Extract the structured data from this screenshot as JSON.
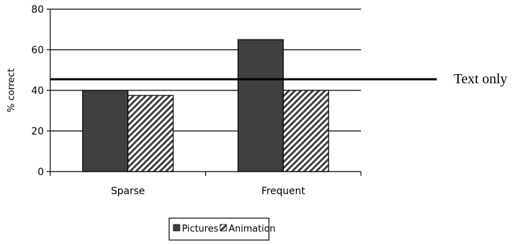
{
  "chart_data": {
    "type": "bar",
    "categories": [
      "Sparse",
      "Frequent"
    ],
    "series": [
      {
        "name": "Pictures",
        "values": [
          40,
          65
        ],
        "color": "#404040",
        "pattern": "solid"
      },
      {
        "name": "Animation",
        "values": [
          37.5,
          40
        ],
        "color": "#404040",
        "pattern": "diagonal-hatch"
      }
    ],
    "reference_line": {
      "label": "Text only",
      "value": 45.5
    },
    "ylabel": "% correct",
    "xlabel": "",
    "ylim": [
      0,
      80
    ],
    "yticks": [
      0,
      20,
      40,
      60,
      80
    ],
    "grid": true,
    "legend_position": "bottom"
  }
}
